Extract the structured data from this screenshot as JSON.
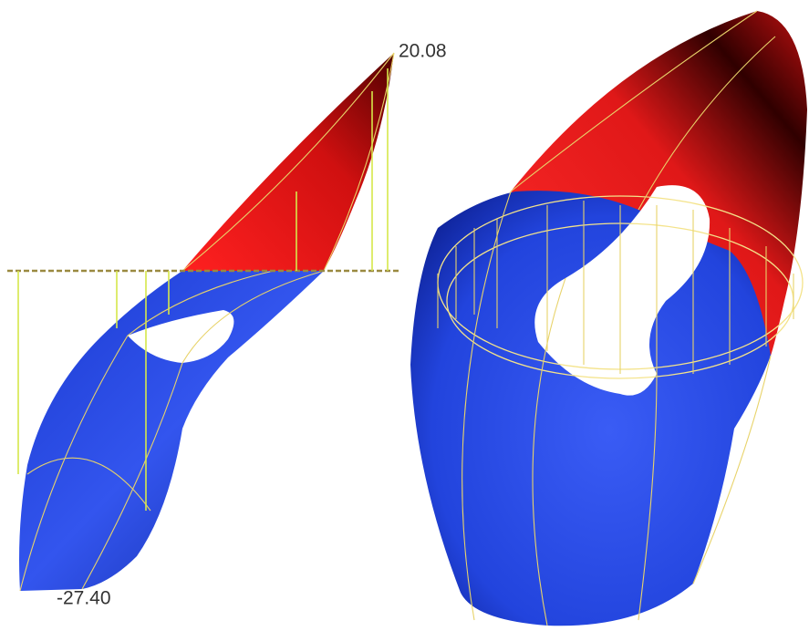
{
  "labels": {
    "max": "20.08",
    "min": "-27.40"
  }
}
